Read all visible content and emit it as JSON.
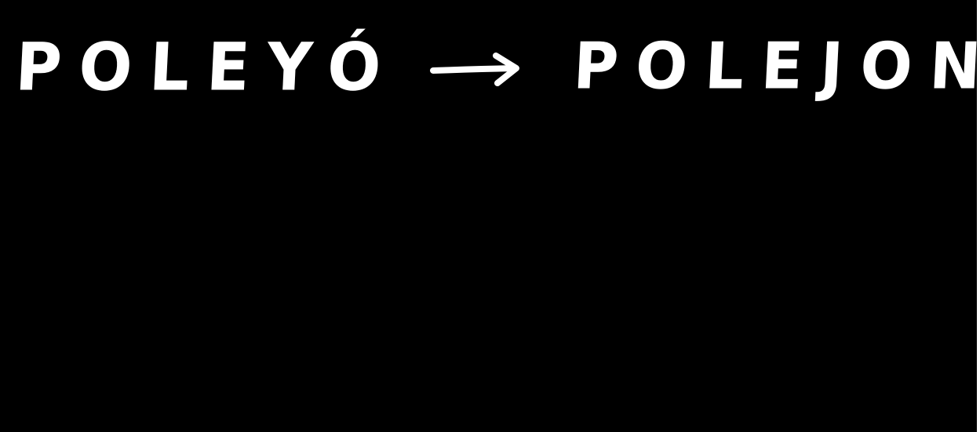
{
  "source_word": "POLEYÓ",
  "arrow_symbol": "→",
  "target_word": "POLEJON",
  "colors": {
    "background": "#000000",
    "ink": "#ffffff"
  }
}
